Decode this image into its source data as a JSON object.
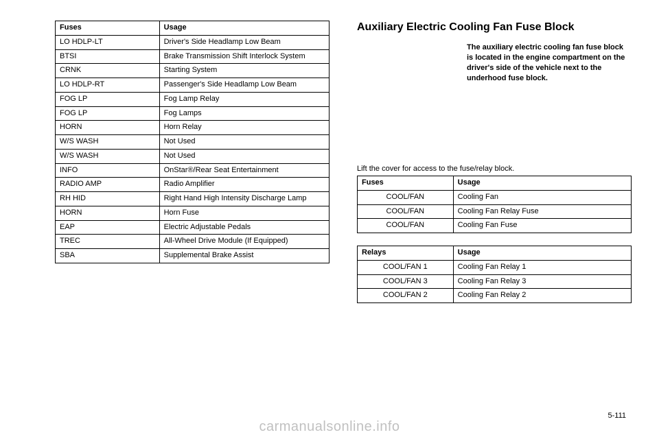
{
  "left_table": {
    "header": {
      "c1": "Fuses",
      "c2": "Usage"
    },
    "rows": [
      {
        "c1": "LO HDLP-LT",
        "c2": "Driver's Side Headlamp Low Beam"
      },
      {
        "c1": "BTSI",
        "c2": "Brake Transmission Shift Interlock System"
      },
      {
        "c1": "CRNK",
        "c2": "Starting System"
      },
      {
        "c1": "LO HDLP-RT",
        "c2": "Passenger's Side Headlamp Low Beam"
      },
      {
        "c1": "FOG LP",
        "c2": "Fog Lamp Relay"
      },
      {
        "c1": "FOG LP",
        "c2": "Fog Lamps"
      },
      {
        "c1": "HORN",
        "c2": "Horn Relay"
      },
      {
        "c1": "W/S WASH",
        "c2": "Not Used"
      },
      {
        "c1": "W/S WASH",
        "c2": "Not Used"
      },
      {
        "c1": "INFO",
        "c2": "OnStar®/Rear Seat Entertainment"
      },
      {
        "c1": "RADIO AMP",
        "c2": "Radio Amplifier"
      },
      {
        "c1": "RH HID",
        "c2": "Right Hand High Intensity Discharge Lamp"
      },
      {
        "c1": "HORN",
        "c2": "Horn Fuse"
      },
      {
        "c1": "EAP",
        "c2": "Electric Adjustable Pedals"
      },
      {
        "c1": "TREC",
        "c2": "All-Wheel Drive Module (If Equipped)"
      },
      {
        "c1": "SBA",
        "c2": "Supplemental Brake Assist"
      }
    ]
  },
  "right_section": {
    "heading": "Auxiliary Electric Cooling Fan Fuse Block",
    "description": "The auxiliary electric cooling fan fuse block is located in the engine compartment on the driver's side of the vehicle next to the underhood fuse block.",
    "caption": "Lift the cover for access to the fuse/relay block.",
    "table1": {
      "header": {
        "c1": "Fuses",
        "c2": "Usage"
      },
      "rows": [
        {
          "c1": "COOL/FAN",
          "c2": "Cooling Fan"
        },
        {
          "c1": "COOL/FAN",
          "c2": "Cooling Fan Relay Fuse"
        },
        {
          "c1": "COOL/FAN",
          "c2": "Cooling Fan Fuse"
        }
      ]
    },
    "table2": {
      "header": {
        "c1": "Relays",
        "c2": "Usage"
      },
      "rows": [
        {
          "c1": "COOL/FAN 1",
          "c2": "Cooling Fan Relay 1"
        },
        {
          "c1": "COOL/FAN 3",
          "c2": "Cooling Fan Relay 3"
        },
        {
          "c1": "COOL/FAN 2",
          "c2": "Cooling Fan Relay 2"
        }
      ]
    }
  },
  "page_number": "5-111",
  "watermark": "carmanualsonline.info"
}
